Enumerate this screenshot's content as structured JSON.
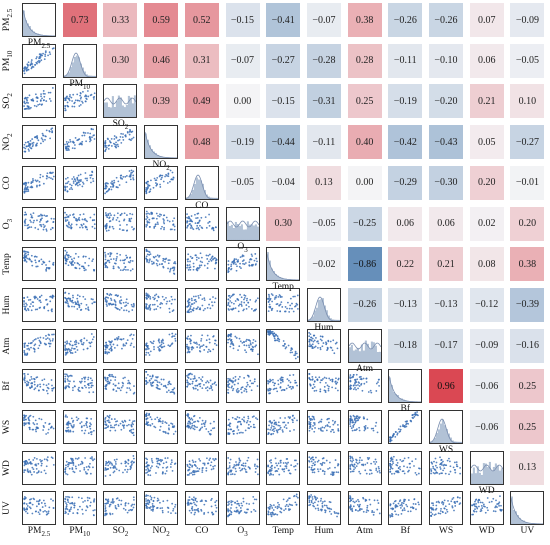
{
  "chart_data": {
    "type": "heatmap",
    "subtype": "pair-plot-correlation-matrix",
    "variables": [
      "PM2.5",
      "PM10",
      "SO2",
      "NO2",
      "CO",
      "O3",
      "Temp",
      "Hum",
      "Atm",
      "Bf",
      "WS",
      "WD",
      "UV"
    ],
    "variable_labels": [
      {
        "base": "PM",
        "sub": "2.5"
      },
      {
        "base": "PM",
        "sub": "10"
      },
      {
        "base": "SO",
        "sub": "2"
      },
      {
        "base": "NO",
        "sub": "2"
      },
      {
        "base": "CO",
        "sub": ""
      },
      {
        "base": "O",
        "sub": "3"
      },
      {
        "base": "Temp",
        "sub": ""
      },
      {
        "base": "Hum",
        "sub": ""
      },
      {
        "base": "Atm",
        "sub": ""
      },
      {
        "base": "Bf",
        "sub": ""
      },
      {
        "base": "WS",
        "sub": ""
      },
      {
        "base": "WD",
        "sub": ""
      },
      {
        "base": "UV",
        "sub": ""
      }
    ],
    "upper_triangle_correlations": [
      [
        "PM2.5",
        "PM10",
        0.73
      ],
      [
        "PM2.5",
        "SO2",
        0.33
      ],
      [
        "PM2.5",
        "NO2",
        0.59
      ],
      [
        "PM2.5",
        "CO",
        0.52
      ],
      [
        "PM2.5",
        "O3",
        -0.15
      ],
      [
        "PM2.5",
        "Temp",
        -0.41
      ],
      [
        "PM2.5",
        "Hum",
        -0.07
      ],
      [
        "PM2.5",
        "Atm",
        0.38
      ],
      [
        "PM2.5",
        "Bf",
        -0.26
      ],
      [
        "PM2.5",
        "WS",
        -0.26
      ],
      [
        "PM2.5",
        "WD",
        0.07
      ],
      [
        "PM2.5",
        "UV",
        -0.09
      ],
      [
        "PM10",
        "SO2",
        0.3
      ],
      [
        "PM10",
        "NO2",
        0.46
      ],
      [
        "PM10",
        "CO",
        0.31
      ],
      [
        "PM10",
        "O3",
        -0.07
      ],
      [
        "PM10",
        "Temp",
        -0.27
      ],
      [
        "PM10",
        "Hum",
        -0.28
      ],
      [
        "PM10",
        "Atm",
        0.28
      ],
      [
        "PM10",
        "Bf",
        -0.11
      ],
      [
        "PM10",
        "WS",
        -0.1
      ],
      [
        "PM10",
        "WD",
        0.06
      ],
      [
        "PM10",
        "UV",
        -0.05
      ],
      [
        "SO2",
        "NO2",
        0.39
      ],
      [
        "SO2",
        "CO",
        0.49
      ],
      [
        "SO2",
        "O3",
        -0.0
      ],
      [
        "SO2",
        "Temp",
        -0.15
      ],
      [
        "SO2",
        "Hum",
        -0.31
      ],
      [
        "SO2",
        "Atm",
        0.25
      ],
      [
        "SO2",
        "Bf",
        -0.19
      ],
      [
        "SO2",
        "WS",
        -0.2
      ],
      [
        "SO2",
        "WD",
        0.21
      ],
      [
        "SO2",
        "UV",
        0.1
      ],
      [
        "NO2",
        "CO",
        0.48
      ],
      [
        "NO2",
        "O3",
        -0.19
      ],
      [
        "NO2",
        "Temp",
        -0.44
      ],
      [
        "NO2",
        "Hum",
        -0.11
      ],
      [
        "NO2",
        "Atm",
        0.4
      ],
      [
        "NO2",
        "Bf",
        -0.42
      ],
      [
        "NO2",
        "WS",
        -0.43
      ],
      [
        "NO2",
        "WD",
        0.05
      ],
      [
        "NO2",
        "UV",
        -0.27
      ],
      [
        "CO",
        "O3",
        -0.05
      ],
      [
        "CO",
        "Temp",
        -0.04
      ],
      [
        "CO",
        "Hum",
        0.13
      ],
      [
        "CO",
        "Atm",
        -0.0
      ],
      [
        "CO",
        "Bf",
        -0.29
      ],
      [
        "CO",
        "WS",
        -0.3
      ],
      [
        "CO",
        "WD",
        0.2
      ],
      [
        "CO",
        "UV",
        -0.01
      ],
      [
        "O3",
        "Temp",
        0.3
      ],
      [
        "O3",
        "Hum",
        -0.05
      ],
      [
        "O3",
        "Atm",
        -0.25
      ],
      [
        "O3",
        "Bf",
        0.06
      ],
      [
        "O3",
        "WS",
        0.06
      ],
      [
        "O3",
        "WD",
        0.02
      ],
      [
        "O3",
        "UV",
        0.2
      ],
      [
        "Temp",
        "Hum",
        -0.02
      ],
      [
        "Temp",
        "Atm",
        -0.86
      ],
      [
        "Temp",
        "Bf",
        0.22
      ],
      [
        "Temp",
        "WS",
        0.21
      ],
      [
        "Temp",
        "WD",
        0.08
      ],
      [
        "Temp",
        "UV",
        0.38
      ],
      [
        "Hum",
        "Atm",
        -0.26
      ],
      [
        "Hum",
        "Bf",
        -0.13
      ],
      [
        "Hum",
        "WS",
        -0.13
      ],
      [
        "Hum",
        "WD",
        -0.12
      ],
      [
        "Hum",
        "UV",
        -0.39
      ],
      [
        "Atm",
        "Bf",
        -0.18
      ],
      [
        "Atm",
        "WS",
        -0.17
      ],
      [
        "Atm",
        "WD",
        -0.09
      ],
      [
        "Atm",
        "UV",
        -0.16
      ],
      [
        "Bf",
        "WS",
        0.96
      ],
      [
        "Bf",
        "WD",
        -0.06
      ],
      [
        "Bf",
        "UV",
        0.25
      ],
      [
        "WS",
        "WD",
        -0.06
      ],
      [
        "WS",
        "UV",
        0.25
      ],
      [
        "WD",
        "UV",
        0.13
      ]
    ],
    "diagonal": "histogram",
    "lower_triangle": "scatter",
    "colormap": {
      "negative": "#4f7fb0",
      "neutral": "#f4f4f6",
      "positive": "#d9414c"
    },
    "scatter_color": "#3a6fb5",
    "grid": false
  }
}
